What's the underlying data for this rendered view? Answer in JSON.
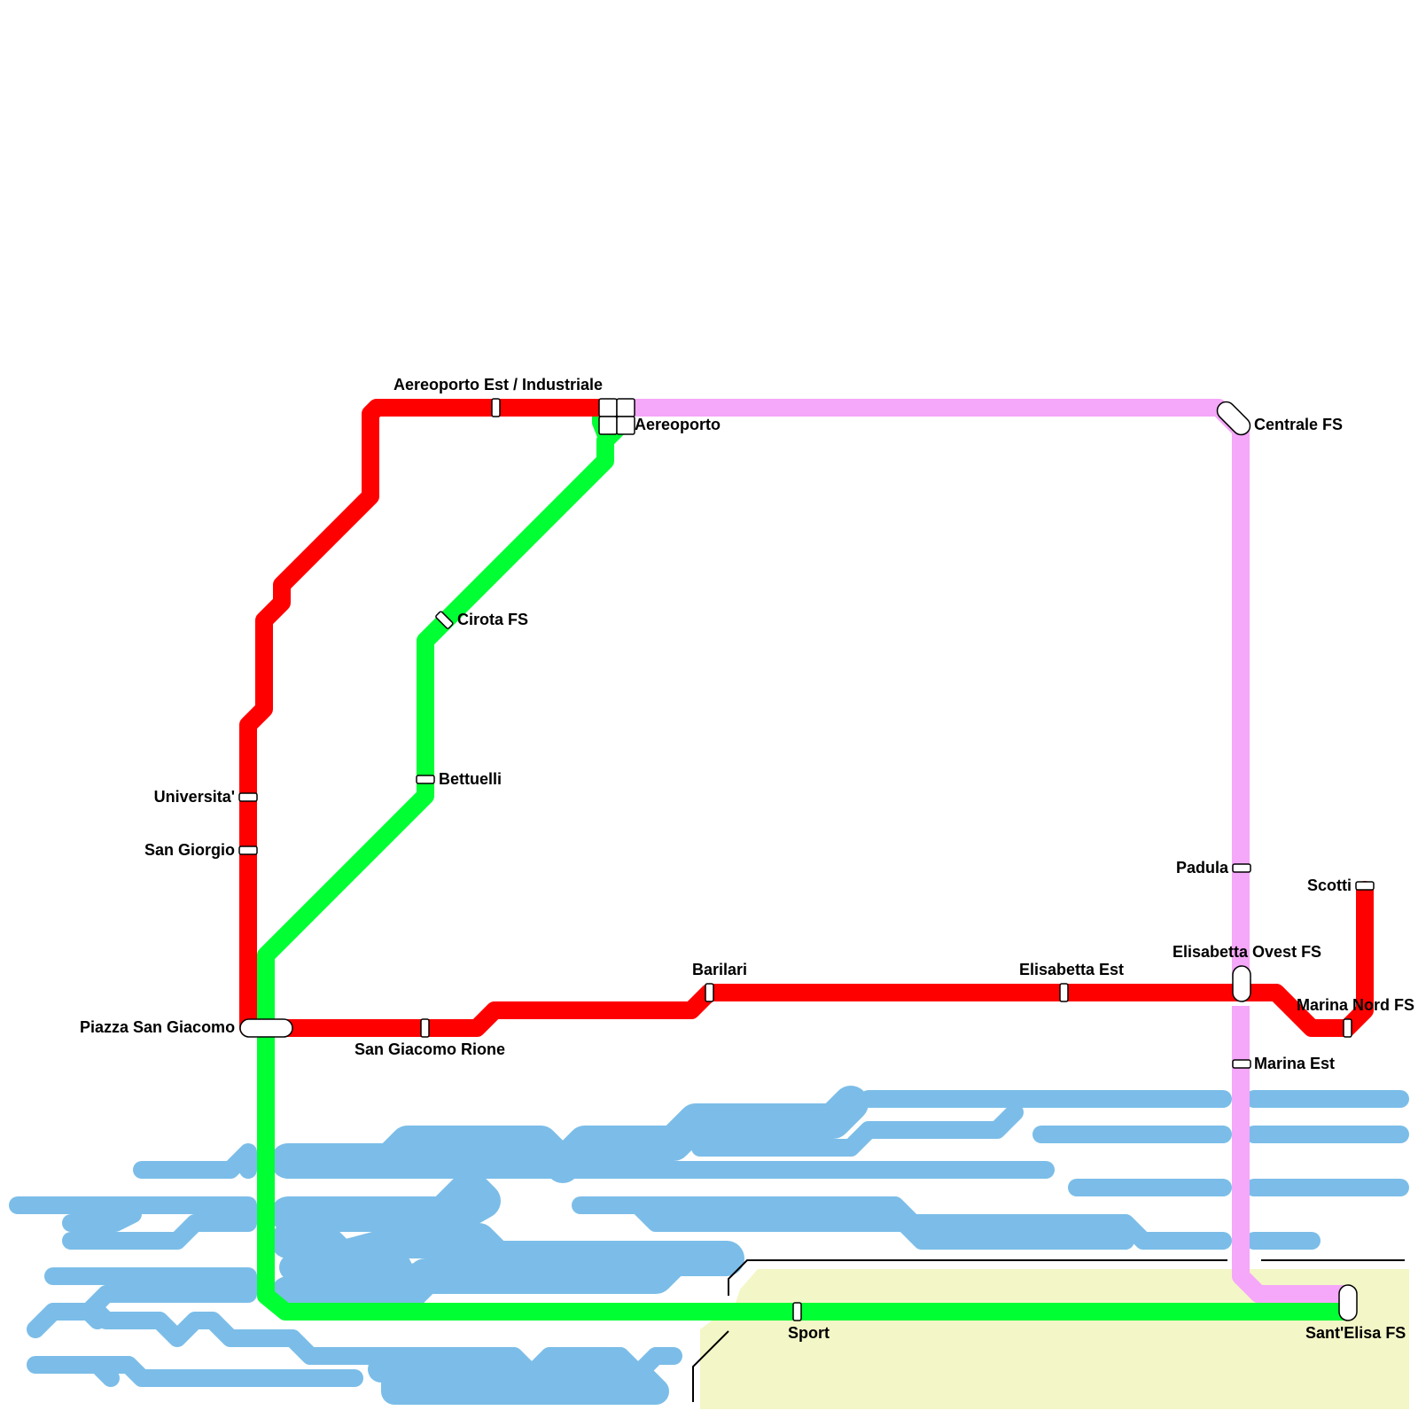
{
  "colors": {
    "red_line": "#ff0000",
    "green_line": "#00ff33",
    "pink_line": "#f5a7f9",
    "water": "#7bbde8",
    "land": "#f3f6c6",
    "station_fill": "#ffffff",
    "station_stroke": "#000000"
  },
  "lines": [
    {
      "id": "red",
      "color": "#ff0000"
    },
    {
      "id": "green",
      "color": "#00ff33"
    },
    {
      "id": "pink",
      "color": "#f5a7f9"
    }
  ],
  "stations": {
    "aereoporto_est": "Aereoporto Est / Industriale",
    "aereoporto": "Aereoporto",
    "centrale_fs": "Centrale FS",
    "cirota_fs": "Cirota FS",
    "bettuelli": "Bettuelli",
    "universita": "Universita'",
    "san_giorgio": "San Giorgio",
    "piazza_san_giacomo": "Piazza San Giacomo",
    "san_giacomo_rione": "San Giacomo Rione",
    "barilari": "Barilari",
    "elisabetta_est": "Elisabetta Est",
    "elisabetta_ovest_fs": "Elisabetta Ovest FS",
    "padula": "Padula",
    "scotti": "Scotti",
    "marina_nord_fs": "Marina Nord FS",
    "marina_est": "Marina Est",
    "sport": "Sport",
    "sant_elisa_fs": "Sant'Elisa FS"
  }
}
